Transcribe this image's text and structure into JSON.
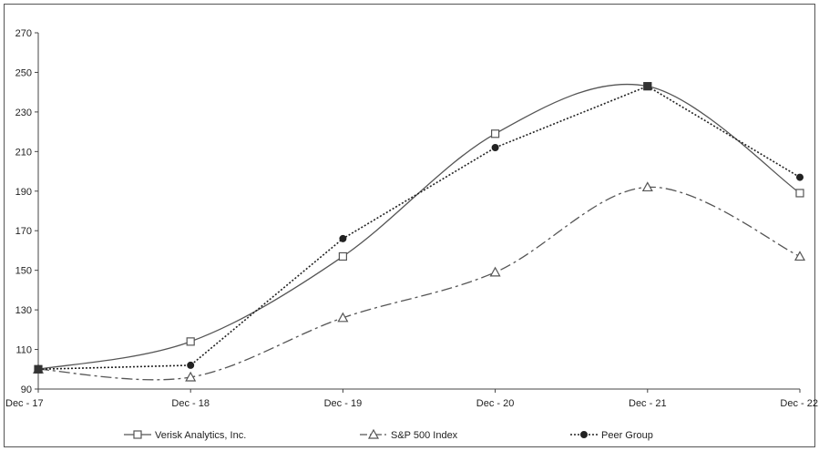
{
  "chart_data": {
    "type": "line",
    "title": "",
    "xlabel": "",
    "ylabel": "",
    "categories": [
      "Dec - 17",
      "Dec - 18",
      "Dec - 19",
      "Dec - 20",
      "Dec - 21",
      "Dec - 22"
    ],
    "ylim": [
      90,
      270
    ],
    "yticks": [
      90,
      110,
      130,
      150,
      170,
      190,
      210,
      230,
      250,
      270
    ],
    "grid": false,
    "legend_position": "bottom",
    "series": [
      {
        "name": "Verisk Analytics, Inc.",
        "values": [
          100,
          114,
          157,
          219,
          243,
          189
        ],
        "marker": "square",
        "style": "solid",
        "smooth": true,
        "color": "#555555"
      },
      {
        "name": "S&P 500 Index",
        "values": [
          100,
          96,
          126,
          149,
          192,
          157
        ],
        "marker": "triangle",
        "style": "dashdot",
        "smooth": true,
        "color": "#555555"
      },
      {
        "name": "Peer Group",
        "values": [
          100,
          102,
          166,
          212,
          243,
          197
        ],
        "marker": "circle",
        "style": "dotted",
        "smooth": false,
        "color": "#222222"
      }
    ]
  }
}
